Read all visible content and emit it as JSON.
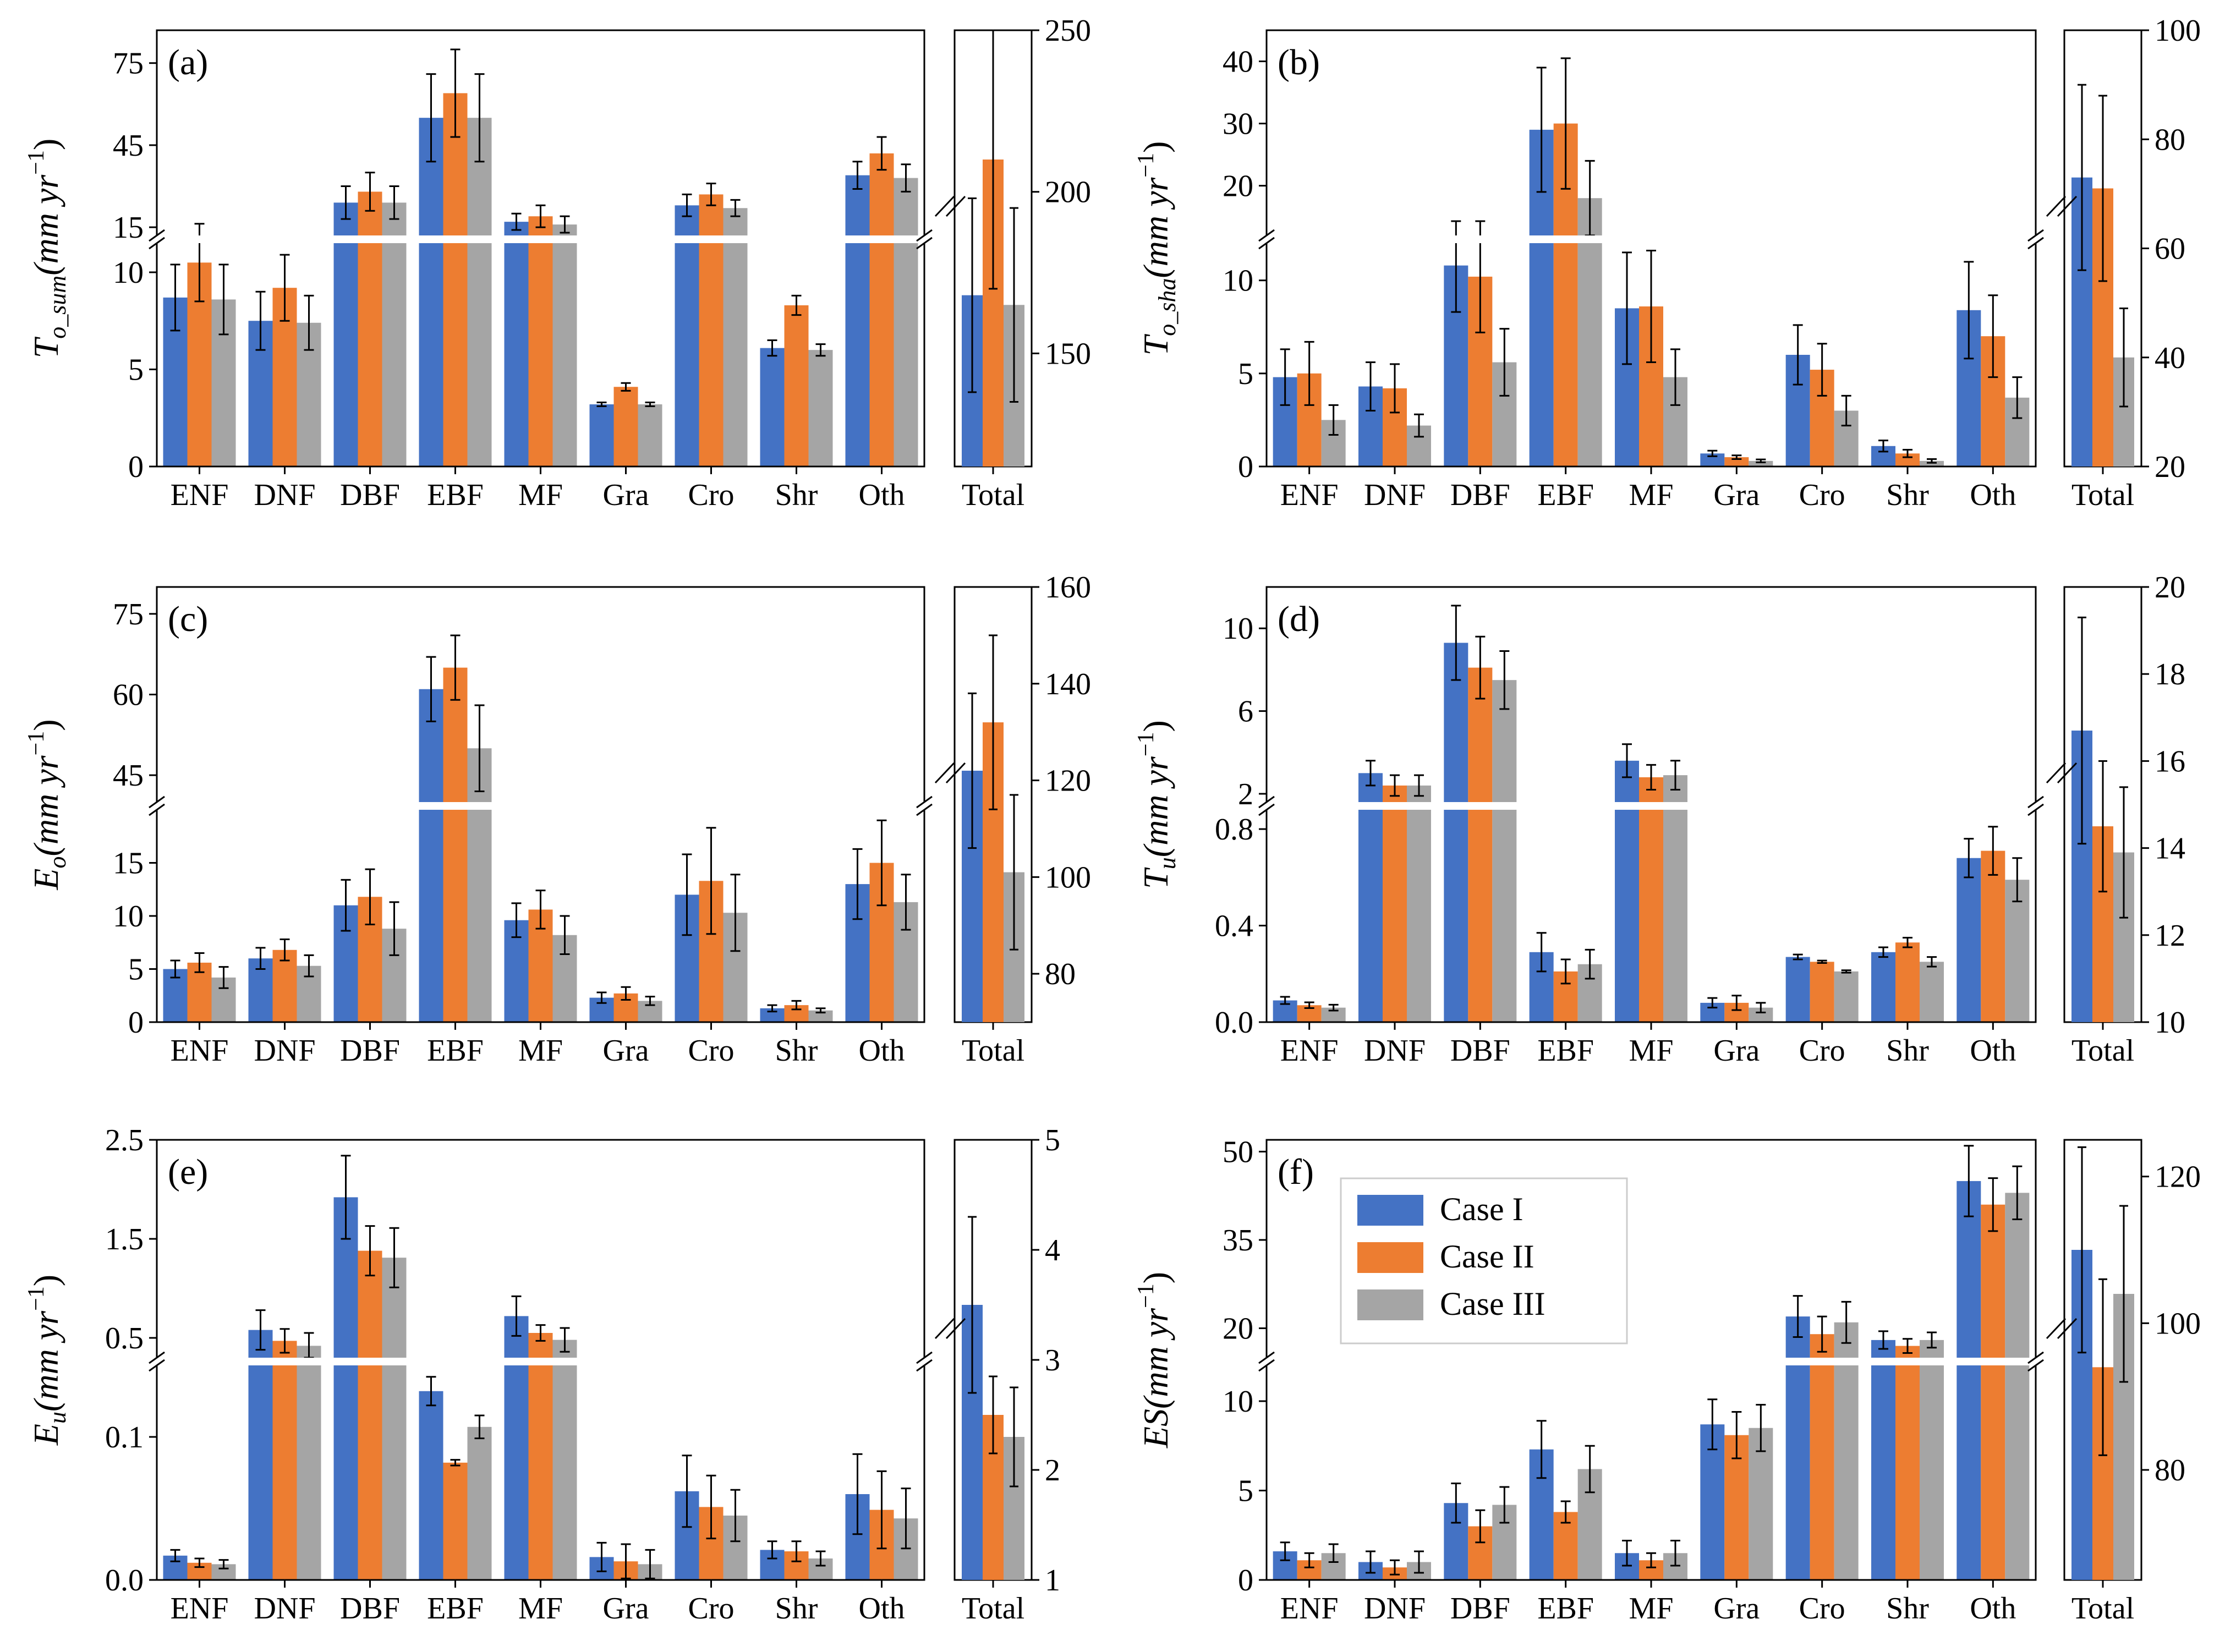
{
  "colors": {
    "case1": "#4472C4",
    "case2": "#ED7D31",
    "case3": "#A5A5A5"
  },
  "legend": {
    "items": [
      "Case I",
      "Case II",
      "Case III"
    ]
  },
  "chart_data": [
    {
      "type": "bar",
      "panel": "(a)",
      "ylabel_main": "T",
      "ylabel_sub": "o_sum",
      "ylabel_unit": "(mm yr",
      "ylabel_exp": "−1",
      "ylabel_close": ")",
      "categories": [
        "ENF",
        "DNF",
        "DBF",
        "EBF",
        "MF",
        "Gra",
        "Cro",
        "Shr",
        "Oth"
      ],
      "lower": {
        "ylim": [
          0,
          11.5
        ],
        "ticks": [
          0,
          5,
          10
        ],
        "tick_labels": [
          "0",
          "5",
          "10"
        ]
      },
      "upper": {
        "ylim": [
          12,
          87
        ],
        "ticks": [
          15,
          45,
          75
        ],
        "tick_labels": [
          "15",
          "45",
          "75"
        ]
      },
      "break_at": [
        "DBF",
        "EBF",
        "MF",
        "Cro",
        "Oth"
      ],
      "series": [
        {
          "name": "Case I",
          "values": [
            8.7,
            7.5,
            24,
            55,
            17,
            3.2,
            23,
            6.1,
            34
          ],
          "err": [
            1.7,
            1.5,
            6,
            16,
            3,
            0.1,
            4,
            0.4,
            5
          ]
        },
        {
          "name": "Case II",
          "values": [
            10.5,
            9.2,
            28,
            64,
            19,
            4.1,
            27,
            8.3,
            42
          ],
          "err": [
            2.0,
            1.7,
            7,
            16,
            4,
            0.2,
            4,
            0.5,
            6
          ]
        },
        {
          "name": "Case III",
          "values": [
            8.6,
            7.4,
            24,
            55,
            16,
            3.2,
            22,
            6.0,
            33
          ],
          "err": [
            1.8,
            1.4,
            6,
            16,
            3,
            0.1,
            3,
            0.3,
            5
          ]
        }
      ],
      "total": {
        "ylim": [
          115,
          250
        ],
        "ticks": [
          150,
          200,
          250
        ],
        "tick_labels": [
          "150",
          "200",
          "250"
        ],
        "label": "Total",
        "values": [
          168,
          210,
          165
        ],
        "err": [
          30,
          40,
          30
        ]
      }
    },
    {
      "type": "bar",
      "panel": "(b)",
      "ylabel_main": "T",
      "ylabel_sub": "o_sha",
      "ylabel_unit": "(mm yr",
      "ylabel_exp": "−1",
      "ylabel_close": ")",
      "categories": [
        "ENF",
        "DNF",
        "DBF",
        "EBF",
        "MF",
        "Gra",
        "Cro",
        "Shr",
        "Oth"
      ],
      "lower": {
        "ylim": [
          0,
          12
        ],
        "ticks": [
          0,
          5,
          10
        ],
        "tick_labels": [
          "0",
          "5",
          "10"
        ]
      },
      "upper": {
        "ylim": [
          12,
          45
        ],
        "ticks": [
          20,
          30,
          40
        ],
        "tick_labels": [
          "20",
          "30",
          "40"
        ]
      },
      "break_at": [
        "EBF"
      ],
      "series": [
        {
          "name": "Case I",
          "values": [
            4.8,
            4.3,
            10.8,
            29,
            8.5,
            0.7,
            6.0,
            1.1,
            8.4
          ],
          "err": [
            1.5,
            1.3,
            2.5,
            10,
            3,
            0.15,
            1.6,
            0.3,
            2.6
          ]
        },
        {
          "name": "Case II",
          "values": [
            5.0,
            4.2,
            10.2,
            30,
            8.6,
            0.5,
            5.2,
            0.7,
            7.0
          ],
          "err": [
            1.7,
            1.3,
            3,
            10.5,
            3,
            0.1,
            1.4,
            0.2,
            2.2
          ]
        },
        {
          "name": "Case III",
          "values": [
            2.5,
            2.2,
            5.6,
            18,
            4.8,
            0.3,
            3.0,
            0.3,
            3.7
          ],
          "err": [
            0.8,
            0.6,
            1.8,
            6,
            1.5,
            0.08,
            0.8,
            0.1,
            1.1
          ]
        }
      ],
      "total": {
        "ylim": [
          20,
          100
        ],
        "ticks": [
          20,
          40,
          60,
          80,
          100
        ],
        "tick_labels": [
          "20",
          "40",
          "60",
          "80",
          "100"
        ],
        "label": "Total",
        "values": [
          73,
          71,
          40
        ],
        "err": [
          17,
          17,
          9
        ]
      }
    },
    {
      "type": "bar",
      "panel": "(c)",
      "ylabel_main": "E",
      "ylabel_sub": "o",
      "ylabel_unit": "(mm yr",
      "ylabel_exp": "−1",
      "ylabel_close": ")",
      "categories": [
        "ENF",
        "DNF",
        "DBF",
        "EBF",
        "MF",
        "Gra",
        "Cro",
        "Shr",
        "Oth"
      ],
      "lower": {
        "ylim": [
          0,
          20
        ],
        "ticks": [
          0,
          5,
          10,
          15
        ],
        "tick_labels": [
          "0",
          "5",
          "10",
          "15"
        ]
      },
      "upper": {
        "ylim": [
          40,
          80
        ],
        "ticks": [
          45,
          60,
          75
        ],
        "tick_labels": [
          "45",
          "60",
          "75"
        ]
      },
      "break_at": [
        "EBF"
      ],
      "series": [
        {
          "name": "Case I",
          "values": [
            5.0,
            6.0,
            11,
            61,
            9.6,
            2.3,
            12,
            1.3,
            13
          ],
          "err": [
            0.8,
            1.0,
            2.4,
            6,
            1.6,
            0.5,
            3.8,
            0.3,
            3.3
          ]
        },
        {
          "name": "Case II",
          "values": [
            5.6,
            6.8,
            11.8,
            65,
            10.6,
            2.7,
            13.3,
            1.6,
            15
          ],
          "err": [
            0.9,
            1.0,
            2.6,
            6,
            1.8,
            0.6,
            5,
            0.4,
            4
          ]
        },
        {
          "name": "Case III",
          "values": [
            4.2,
            5.3,
            8.8,
            50,
            8.2,
            2.0,
            10.3,
            1.1,
            11.3
          ],
          "err": [
            1.0,
            1.0,
            2.5,
            8,
            1.8,
            0.4,
            3.6,
            0.2,
            2.6
          ]
        }
      ],
      "total": {
        "ylim": [
          70,
          160
        ],
        "ticks": [
          80,
          100,
          120,
          140,
          160
        ],
        "tick_labels": [
          "80",
          "100",
          "120",
          "140",
          "160"
        ],
        "label": "Total",
        "values": [
          122,
          132,
          101
        ],
        "err": [
          16,
          18,
          16
        ]
      }
    },
    {
      "type": "bar",
      "panel": "(d)",
      "ylabel_main": "T",
      "ylabel_sub": "u",
      "ylabel_unit": "(mm yr",
      "ylabel_exp": "−1",
      "ylabel_close": ")",
      "categories": [
        "ENF",
        "DNF",
        "DBF",
        "EBF",
        "MF",
        "Gra",
        "Cro",
        "Shr",
        "Oth"
      ],
      "lower": {
        "ylim": [
          0,
          0.88
        ],
        "ticks": [
          0.0,
          0.4,
          0.8
        ],
        "tick_labels": [
          "0.0",
          "0.4",
          "0.8"
        ]
      },
      "upper": {
        "ylim": [
          1.6,
          12
        ],
        "ticks": [
          2,
          6,
          10
        ],
        "tick_labels": [
          "2",
          "6",
          "10"
        ]
      },
      "break_at": [
        "DNF",
        "DBF",
        "MF"
      ],
      "series": [
        {
          "name": "Case I",
          "values": [
            0.09,
            3.0,
            9.3,
            0.29,
            3.6,
            0.08,
            0.27,
            0.29,
            0.68
          ],
          "err": [
            0.015,
            0.6,
            1.8,
            0.08,
            0.8,
            0.02,
            0.01,
            0.02,
            0.08
          ]
        },
        {
          "name": "Case II",
          "values": [
            0.07,
            2.4,
            8.1,
            0.21,
            2.8,
            0.08,
            0.25,
            0.33,
            0.71
          ],
          "err": [
            0.012,
            0.5,
            1.5,
            0.05,
            0.6,
            0.03,
            0.005,
            0.02,
            0.1
          ]
        },
        {
          "name": "Case III",
          "values": [
            0.06,
            2.4,
            7.5,
            0.24,
            2.9,
            0.06,
            0.21,
            0.25,
            0.59
          ],
          "err": [
            0.012,
            0.5,
            1.4,
            0.06,
            0.7,
            0.02,
            0.005,
            0.02,
            0.09
          ]
        }
      ],
      "total": {
        "ylim": [
          10,
          20
        ],
        "ticks": [
          10,
          12,
          14,
          16,
          18,
          20
        ],
        "tick_labels": [
          "10",
          "12",
          "14",
          "16",
          "18",
          "20"
        ],
        "label": "Total",
        "values": [
          16.7,
          14.5,
          13.9
        ],
        "err": [
          2.6,
          1.5,
          1.5
        ]
      }
    },
    {
      "type": "bar",
      "panel": "(e)",
      "ylabel_main": "E",
      "ylabel_sub": "u",
      "ylabel_unit": "(mm yr",
      "ylabel_exp": "−1",
      "ylabel_close": ")",
      "categories": [
        "ENF",
        "DNF",
        "DBF",
        "EBF",
        "MF",
        "Gra",
        "Cro",
        "Shr",
        "Oth"
      ],
      "lower": {
        "ylim": [
          0,
          0.15
        ],
        "ticks": [
          0.0,
          0.1
        ],
        "tick_labels": [
          "0.0",
          "0.1"
        ]
      },
      "upper": {
        "ylim": [
          0.3,
          2.5
        ],
        "ticks": [
          0.5,
          1.5,
          2.5
        ],
        "tick_labels": [
          "0.5",
          "1.5",
          "2.5"
        ]
      },
      "break_at": [
        "DNF",
        "DBF",
        "MF"
      ],
      "series": [
        {
          "name": "Case I",
          "values": [
            0.017,
            0.58,
            1.92,
            0.132,
            0.72,
            0.016,
            0.062,
            0.021,
            0.06
          ],
          "err": [
            0.004,
            0.2,
            0.42,
            0.01,
            0.2,
            0.01,
            0.025,
            0.006,
            0.028
          ]
        },
        {
          "name": "Case II",
          "values": [
            0.012,
            0.47,
            1.38,
            0.082,
            0.55,
            0.013,
            0.051,
            0.02,
            0.049
          ],
          "err": [
            0.003,
            0.12,
            0.25,
            0.002,
            0.08,
            0.012,
            0.022,
            0.007,
            0.027
          ]
        },
        {
          "name": "Case III",
          "values": [
            0.011,
            0.42,
            1.31,
            0.107,
            0.48,
            0.011,
            0.045,
            0.015,
            0.043
          ],
          "err": [
            0.003,
            0.13,
            0.3,
            0.008,
            0.12,
            0.01,
            0.018,
            0.005,
            0.021
          ]
        }
      ],
      "total": {
        "ylim": [
          1,
          5
        ],
        "ticks": [
          1,
          2,
          3,
          4,
          5
        ],
        "tick_labels": [
          "1",
          "2",
          "3",
          "4",
          "5"
        ],
        "label": "Total",
        "values": [
          3.5,
          2.5,
          2.3
        ],
        "err": [
          0.8,
          0.35,
          0.45
        ]
      }
    },
    {
      "type": "bar",
      "panel": "(f)",
      "ylabel_main": "ES",
      "ylabel_sub": "",
      "ylabel_unit": "(mm yr",
      "ylabel_exp": "−1",
      "ylabel_close": ")",
      "categories": [
        "ENF",
        "DNF",
        "DBF",
        "EBF",
        "MF",
        "Gra",
        "Cro",
        "Shr",
        "Oth"
      ],
      "lower": {
        "ylim": [
          0,
          12
        ],
        "ticks": [
          0,
          5,
          10
        ],
        "tick_labels": [
          "0",
          "5",
          "10"
        ]
      },
      "upper": {
        "ylim": [
          15,
          52
        ],
        "ticks": [
          20,
          35,
          50
        ],
        "tick_labels": [
          "20",
          "35",
          "50"
        ]
      },
      "break_at": [
        "Cro",
        "Shr",
        "Oth"
      ],
      "legend": "top-left",
      "series": [
        {
          "name": "Case I",
          "values": [
            1.6,
            1.0,
            4.3,
            7.3,
            1.5,
            8.7,
            22,
            18,
            45
          ],
          "err": [
            0.5,
            0.6,
            1.1,
            1.6,
            0.7,
            1.4,
            3.5,
            1.5,
            6
          ]
        },
        {
          "name": "Case II",
          "values": [
            1.1,
            0.7,
            3.0,
            3.8,
            1.1,
            8.1,
            19,
            17,
            41
          ],
          "err": [
            0.4,
            0.4,
            0.9,
            0.6,
            0.4,
            1.3,
            3,
            1.2,
            4.5
          ]
        },
        {
          "name": "Case III",
          "values": [
            1.5,
            1.0,
            4.2,
            6.2,
            1.5,
            8.5,
            21,
            18,
            43
          ],
          "err": [
            0.5,
            0.6,
            1.0,
            1.3,
            0.7,
            1.3,
            3.5,
            1.3,
            4.5
          ]
        }
      ],
      "total": {
        "ylim": [
          65,
          125
        ],
        "ticks": [
          80,
          100,
          120
        ],
        "tick_labels": [
          "80",
          "100",
          "120"
        ],
        "label": "Total",
        "values": [
          110,
          94,
          104
        ],
        "err": [
          14,
          12,
          12
        ]
      }
    }
  ]
}
